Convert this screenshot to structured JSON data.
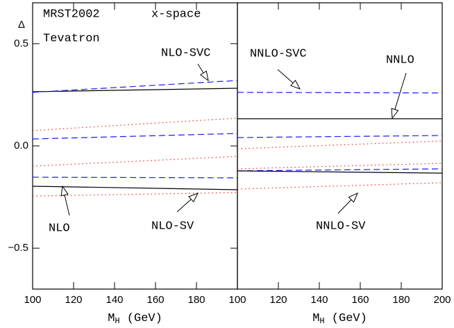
{
  "chart_data": [
    {
      "type": "line",
      "ylabel": "Δ",
      "xlabel": {
        "main": "M",
        "sub": "H",
        "rest": " (GeV)"
      },
      "xlim": [
        100,
        200
      ],
      "ylim": [
        -0.7,
        0.7
      ],
      "xticks": [
        100,
        120,
        140,
        160,
        180
      ],
      "yticks": [
        {
          "value": -0.5,
          "label": "−0.5"
        },
        {
          "value": 0,
          "label": "0.0"
        },
        0.5
      ],
      "annotations": [
        {
          "text": "MRST2002",
          "color": "#000000"
        },
        {
          "text": "x-space",
          "color": "#000000"
        },
        {
          "text": "Tevatron",
          "color": "#000000"
        },
        {
          "text": "NLO-SVC",
          "color": "#1a1aff"
        },
        {
          "text": "NLO",
          "color": "#000000"
        },
        {
          "text": "NLO-SV",
          "color": "#ff2020"
        }
      ],
      "series": [
        {
          "x": [
            100,
            200
          ],
          "values": [
            0.265,
            0.282
          ],
          "color": "#000000",
          "style": "solid"
        },
        {
          "x": [
            100,
            200
          ],
          "values": [
            0.262,
            0.32
          ],
          "color": "#1a1aff",
          "style": "dashed"
        },
        {
          "x": [
            100,
            200
          ],
          "values": [
            0.075,
            0.136
          ],
          "color": "#ff2020",
          "style": "dotted"
        },
        {
          "x": [
            100,
            200
          ],
          "values": [
            0.034,
            0.061
          ],
          "color": "#1a1aff",
          "style": "dashed"
        },
        {
          "x": [
            100,
            200
          ],
          "values": [
            -0.099,
            -0.051
          ],
          "color": "#ff2020",
          "style": "dotted"
        },
        {
          "x": [
            100,
            200
          ],
          "values": [
            -0.153,
            -0.156
          ],
          "color": "#1a1aff",
          "style": "dashed"
        },
        {
          "x": [
            100,
            200
          ],
          "values": [
            -0.197,
            -0.214
          ],
          "color": "#000000",
          "style": "solid"
        },
        {
          "x": [
            100,
            200
          ],
          "values": [
            -0.245,
            -0.228
          ],
          "color": "#ff2020",
          "style": "dotted"
        }
      ]
    },
    {
      "type": "line",
      "xlabel": {
        "main": "M",
        "sub": "H",
        "rest": " (GeV)"
      },
      "xlim": [
        100,
        200
      ],
      "ylim": [
        -0.7,
        0.7
      ],
      "xticks": [
        100,
        120,
        140,
        160,
        180,
        200
      ],
      "annotations": [
        {
          "text": "NNLO-SVC",
          "color": "#1a1aff"
        },
        {
          "text": "NNLO",
          "color": "#000000"
        },
        {
          "text": "NNLO-SV",
          "color": "#ff2020"
        }
      ],
      "series": [
        {
          "x": [
            100,
            200
          ],
          "values": [
            0.262,
            0.259
          ],
          "color": "#1a1aff",
          "style": "dashed"
        },
        {
          "x": [
            100,
            200
          ],
          "values": [
            0.133,
            0.133
          ],
          "color": "#000000",
          "style": "solid"
        },
        {
          "x": [
            100,
            200
          ],
          "values": [
            0.041,
            0.051
          ],
          "color": "#1a1aff",
          "style": "dashed"
        },
        {
          "x": [
            100,
            200
          ],
          "values": [
            -0.014,
            0.024
          ],
          "color": "#ff2020",
          "style": "dotted"
        },
        {
          "x": [
            100,
            200
          ],
          "values": [
            -0.112,
            -0.085
          ],
          "color": "#ff2020",
          "style": "dotted"
        },
        {
          "x": [
            100,
            200
          ],
          "values": [
            -0.122,
            -0.112
          ],
          "color": "#1a1aff",
          "style": "dashed"
        },
        {
          "x": [
            100,
            200
          ],
          "values": [
            -0.122,
            -0.133
          ],
          "color": "#000000",
          "style": "solid"
        },
        {
          "x": [
            100,
            200
          ],
          "values": [
            -0.211,
            -0.18
          ],
          "color": "#ff2020",
          "style": "dotted"
        }
      ]
    }
  ]
}
